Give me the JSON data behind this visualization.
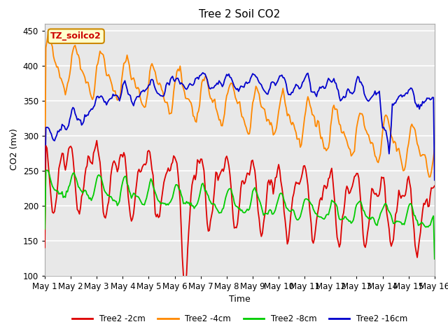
{
  "title": "Tree 2 Soil CO2",
  "xlabel": "Time",
  "ylabel": "CO2 (mv)",
  "ylim": [
    100,
    460
  ],
  "xlim": [
    0,
    360
  ],
  "fig_bg_color": "#ffffff",
  "plot_bg_color": "#e8e8e8",
  "grid_color": "#ffffff",
  "annotation_text": "TZ_soilco2",
  "annotation_bg": "#ffffcc",
  "annotation_border": "#cc8800",
  "annotation_text_color": "#cc0000",
  "x_tick_labels": [
    "May 1",
    "May 2",
    "May 3",
    "May 4",
    "May 5",
    "May 6",
    "May 7",
    "May 8",
    "May 9",
    "May 10",
    "May 11",
    "May 12",
    "May 13",
    "May 14",
    "May 15",
    "May 16"
  ],
  "x_tick_positions": [
    0,
    24,
    48,
    72,
    96,
    120,
    144,
    168,
    192,
    216,
    240,
    264,
    288,
    312,
    336,
    360
  ],
  "y_ticks": [
    100,
    150,
    200,
    250,
    300,
    350,
    400,
    450
  ],
  "line_colors": {
    "2cm": "#dd0000",
    "4cm": "#ff8800",
    "8cm": "#00cc00",
    "16cm": "#0000cc"
  },
  "legend_labels": [
    "Tree2 -2cm",
    "Tree2 -4cm",
    "Tree2 -8cm",
    "Tree2 -16cm"
  ]
}
